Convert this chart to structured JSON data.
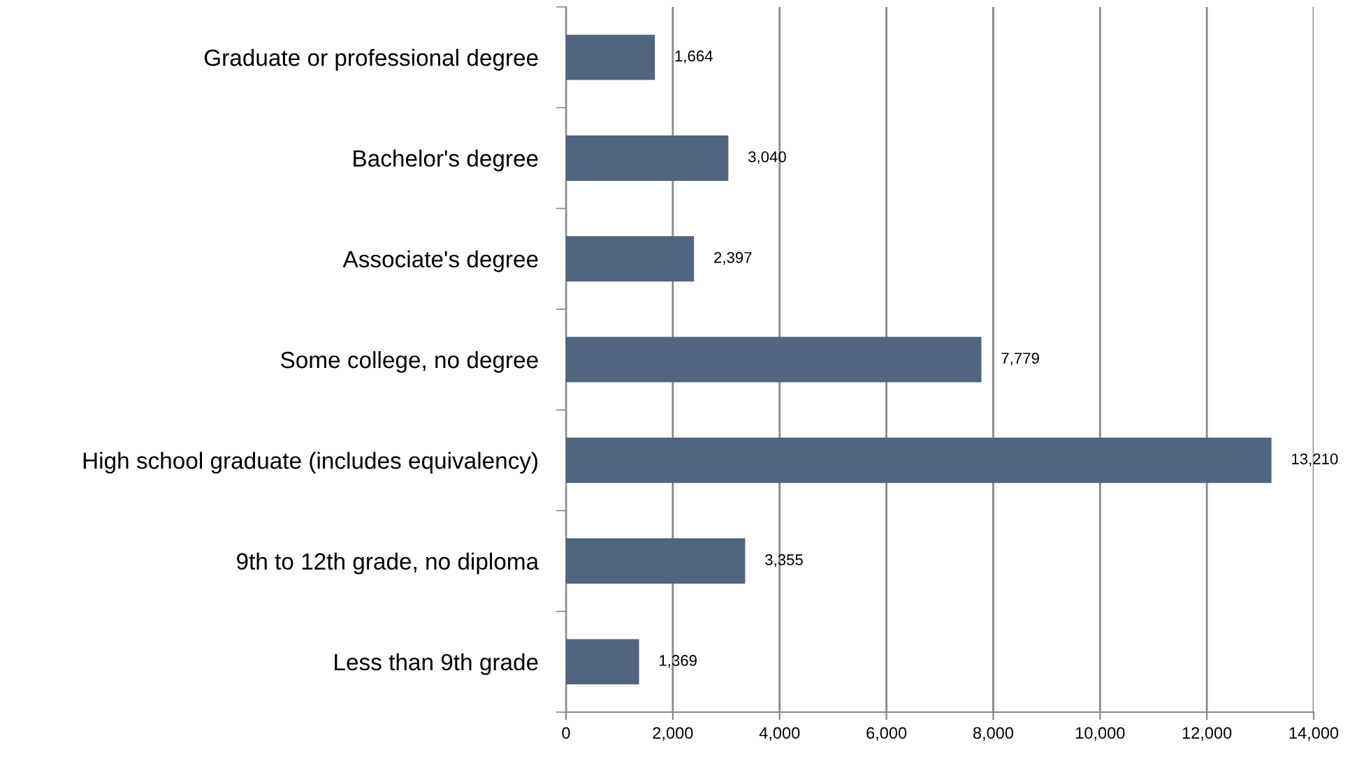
{
  "chart_data": {
    "type": "bar",
    "orientation": "horizontal",
    "categories": [
      "Graduate or professional degree",
      "Bachelor's degree",
      "Associate's degree",
      "Some college, no degree",
      "High school graduate (includes equivalency)",
      "9th to 12th grade, no diploma",
      "Less than 9th grade"
    ],
    "values": [
      1664,
      3040,
      2397,
      7779,
      13210,
      3355,
      1369
    ],
    "value_labels": [
      "1,664",
      "3,040",
      "2,397",
      "7,779",
      "13,210",
      "3,355",
      "1,369"
    ],
    "color": "#4f6580",
    "xlim": [
      0,
      14000
    ],
    "xticks": [
      0,
      {
        "value": 2000,
        "label": "2,000"
      },
      {
        "value": 4000,
        "label": "4,000"
      },
      {
        "value": 6000,
        "label": "6,000"
      },
      {
        "value": 8000,
        "label": "8,000"
      },
      {
        "value": 10000,
        "label": "10,000"
      },
      {
        "value": 12000,
        "label": "12,000"
      },
      {
        "value": 14000,
        "label": "14,000"
      }
    ],
    "grid": "x",
    "legend": false
  }
}
